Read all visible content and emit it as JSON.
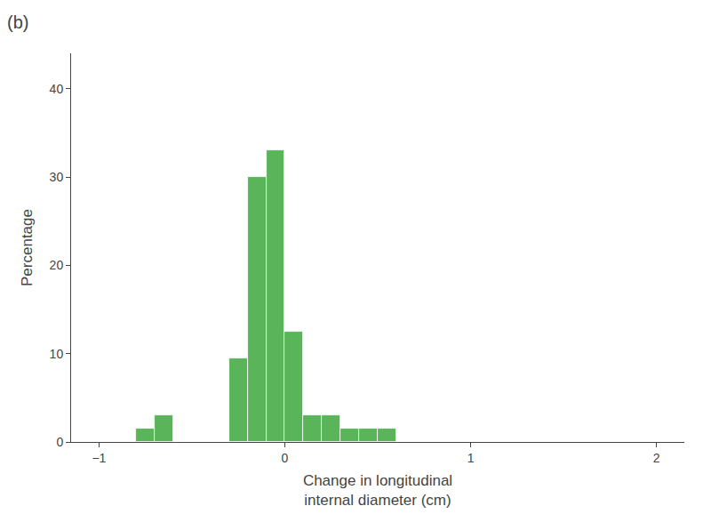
{
  "chart_data": {
    "type": "histogram",
    "title": "(b)",
    "bins": [
      -0.8,
      -0.7,
      -0.6,
      -0.5,
      -0.4,
      -0.3,
      -0.2,
      -0.1,
      0.0,
      0.1,
      0.2,
      0.3,
      0.4,
      0.5,
      0.6,
      0.7,
      0.8,
      0.9
    ],
    "values": [
      1.5,
      3.0,
      0,
      0,
      0,
      9.5,
      30.0,
      33.0,
      12.5,
      3.0,
      3.0,
      1.5,
      1.5,
      1.5,
      0,
      0,
      0
    ],
    "color": "#5ab55a",
    "x_label": "Change in longitudinal\ninternal diameter (cm)",
    "y_label": "Percentage",
    "xlim": [
      -1.15,
      2.15
    ],
    "xticks": [
      -1,
      0,
      1,
      2
    ],
    "ylim": [
      0,
      44
    ],
    "yticks": [
      0,
      10,
      20,
      30,
      40
    ],
    "grid": false
  }
}
